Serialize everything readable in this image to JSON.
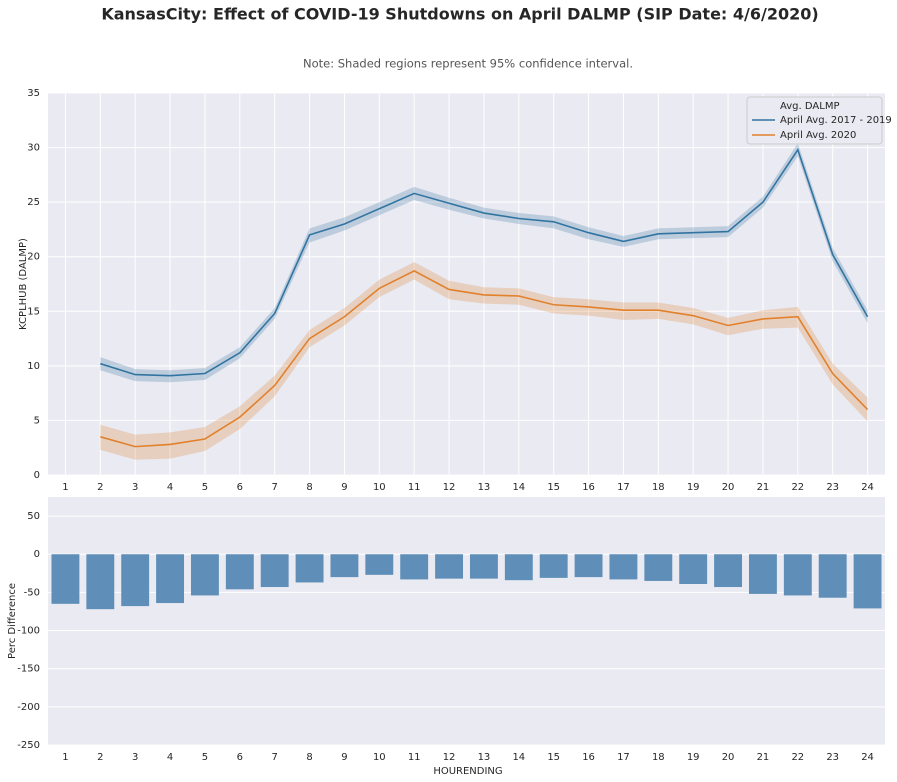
{
  "chart_data": [
    {
      "type": "line",
      "title": "KansasCity: Effect of COVID-19 Shutdowns on April DALMP (SIP Date: 4/6/2020)",
      "subtitle": "Note: Shaded regions represent 95% confidence interval.",
      "y_label": "KCPLHUB (DALMP)",
      "legend_title": "Avg. DALMP",
      "legend": "upper right",
      "grid": true,
      "x": [
        2,
        3,
        4,
        5,
        6,
        7,
        8,
        9,
        10,
        11,
        12,
        13,
        14,
        15,
        16,
        17,
        18,
        19,
        20,
        21,
        22,
        23,
        24
      ],
      "xlim": [
        0.5,
        24.5
      ],
      "xticks": [
        1,
        2,
        3,
        4,
        5,
        6,
        7,
        8,
        9,
        10,
        11,
        12,
        13,
        14,
        15,
        16,
        17,
        18,
        19,
        20,
        21,
        22,
        23,
        24
      ],
      "ylim": [
        0,
        35
      ],
      "yticks": [
        0,
        5,
        10,
        15,
        20,
        25,
        30,
        35
      ],
      "series": [
        {
          "name": "April Avg. 2017 - 2019",
          "color": "#3274a1",
          "values": [
            10.2,
            9.2,
            9.1,
            9.3,
            11.2,
            14.8,
            22.0,
            23.0,
            24.4,
            25.8,
            24.9,
            24.0,
            23.5,
            23.2,
            22.2,
            21.4,
            22.1,
            22.2,
            22.3,
            25.0,
            29.8,
            20.2,
            14.5
          ],
          "upper": [
            10.8,
            9.7,
            9.6,
            9.8,
            11.7,
            15.3,
            22.6,
            23.6,
            25.0,
            26.4,
            25.4,
            24.5,
            24.0,
            23.7,
            22.7,
            21.9,
            22.6,
            22.7,
            22.8,
            25.5,
            30.4,
            20.8,
            15.1
          ],
          "lower": [
            9.6,
            8.6,
            8.5,
            8.7,
            10.7,
            14.3,
            21.3,
            22.4,
            23.8,
            25.2,
            24.3,
            23.5,
            23.0,
            22.6,
            21.6,
            20.9,
            21.6,
            21.7,
            21.8,
            24.5,
            29.2,
            19.6,
            13.9
          ]
        },
        {
          "name": "April Avg. 2020",
          "color": "#e1812c",
          "values": [
            3.5,
            2.6,
            2.8,
            3.3,
            5.3,
            8.2,
            12.5,
            14.5,
            17.1,
            18.7,
            17.0,
            16.5,
            16.4,
            15.6,
            15.4,
            15.1,
            15.1,
            14.6,
            13.7,
            14.3,
            14.5,
            9.3,
            6.0
          ],
          "upper": [
            4.6,
            3.7,
            3.9,
            4.4,
            6.3,
            9.1,
            13.3,
            15.3,
            17.9,
            19.5,
            17.8,
            17.2,
            17.1,
            16.3,
            16.1,
            15.8,
            15.8,
            15.3,
            14.4,
            15.1,
            15.4,
            10.2,
            7.1
          ],
          "lower": [
            2.3,
            1.4,
            1.5,
            2.2,
            4.2,
            7.2,
            11.7,
            13.7,
            16.3,
            17.9,
            16.1,
            15.7,
            15.6,
            14.8,
            14.6,
            14.2,
            14.3,
            13.8,
            12.8,
            13.4,
            13.5,
            8.3,
            4.9
          ]
        }
      ]
    },
    {
      "type": "bar",
      "x_label": "HOURENDING",
      "y_label": "Perc Difference",
      "grid": true,
      "color": "#5f8fb8",
      "categories": [
        "1",
        "2",
        "3",
        "4",
        "5",
        "6",
        "7",
        "8",
        "9",
        "10",
        "11",
        "12",
        "13",
        "14",
        "15",
        "16",
        "17",
        "18",
        "19",
        "20",
        "21",
        "22",
        "23",
        "24"
      ],
      "values": [
        -65,
        -72,
        -68,
        -64,
        -54,
        -46,
        -43,
        -37,
        -30,
        -27,
        -33,
        -32,
        -32,
        -34,
        -31,
        -30,
        -33,
        -35,
        -39,
        -43,
        -52,
        -54,
        -57,
        -71
      ],
      "ylim": [
        -250,
        75
      ],
      "yticks": [
        -250,
        -200,
        -150,
        -100,
        -50,
        0,
        50
      ]
    }
  ]
}
